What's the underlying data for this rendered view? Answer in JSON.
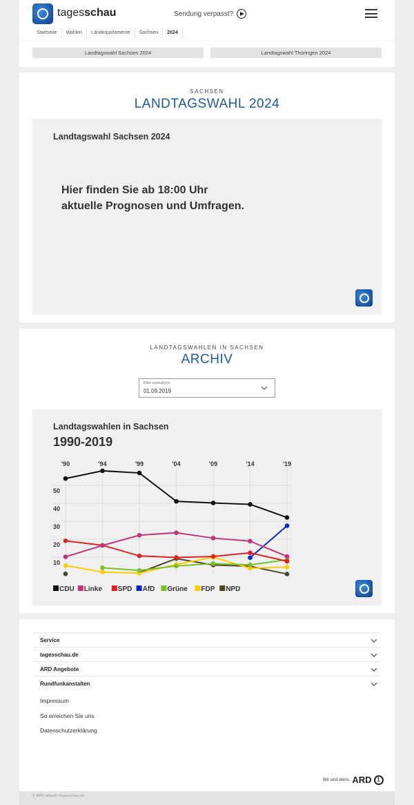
{
  "header": {
    "brand_light": "tages",
    "brand_bold": "schau",
    "sendung": "Sendung verpasst?"
  },
  "breadcrumb": [
    "Startseite",
    "Wahlen",
    "Länderparlamente",
    "Sachsen",
    "2024"
  ],
  "tabs": [
    "Landtagswahl Sachsen 2024",
    "Landtagswahl Thüringen 2024"
  ],
  "section1": {
    "kicker": "SACHSEN",
    "title": "LANDTAGSWAHL 2024",
    "box_title": "Landtagswahl Sachsen 2024",
    "message_line1": "Hier finden Sie ab 18:00 Uhr",
    "message_line2": "aktuelle Prognosen und Umfragen."
  },
  "section2": {
    "kicker": "LANDTAGSWAHLEN IN SACHSEN",
    "title": "ARCHIV",
    "select_label": "Bitte auswählen",
    "select_value": "01.09.2019"
  },
  "chart_data": {
    "type": "line",
    "title": "Landtagswahlen in Sachsen",
    "subtitle": "1990-2019",
    "categories": [
      "'90",
      "'94",
      "'99",
      "'04",
      "'09",
      "'14",
      "'19"
    ],
    "yticks": [
      10,
      20,
      30,
      40,
      50
    ],
    "ylim": [
      0,
      60
    ],
    "grid": true,
    "legend": "bottom",
    "series": [
      {
        "name": "CDU",
        "color": "#111111",
        "values": [
          53.8,
          58.1,
          56.9,
          41.1,
          40.2,
          39.4,
          32.1
        ]
      },
      {
        "name": "Linke",
        "color": "#c0357a",
        "values": [
          10.2,
          16.5,
          22.2,
          23.6,
          20.6,
          18.9,
          10.4
        ]
      },
      {
        "name": "SPD",
        "color": "#dd2222",
        "values": [
          19.1,
          16.6,
          10.7,
          9.8,
          10.4,
          12.4,
          7.7
        ]
      },
      {
        "name": "AfD",
        "color": "#0a28c8",
        "values": [
          null,
          null,
          null,
          null,
          null,
          9.7,
          27.5
        ]
      },
      {
        "name": "Grüne",
        "color": "#77c02a",
        "values": [
          null,
          4.1,
          2.6,
          5.1,
          6.4,
          5.7,
          8.6
        ]
      },
      {
        "name": "FDP",
        "color": "#ffcc00",
        "values": [
          5.3,
          1.7,
          1.1,
          5.9,
          10.0,
          3.8,
          4.5
        ]
      },
      {
        "name": "NPD",
        "color": "#4d4526",
        "values": [
          0.7,
          null,
          1.4,
          9.2,
          5.6,
          4.9,
          0.6
        ]
      }
    ]
  },
  "footer": {
    "accordion": [
      "Service",
      "tagesschau.de",
      "ARD Angebote",
      "Rundfunkanstalten"
    ],
    "links": [
      "Impressum",
      "So erreichen Sie uns",
      "Datenschutzerklärung"
    ],
    "ard_claim": "Wir sind deins.",
    "ard_logo": "ARD",
    "copyright": "© ARD-aktuell / tagesschau.de"
  }
}
